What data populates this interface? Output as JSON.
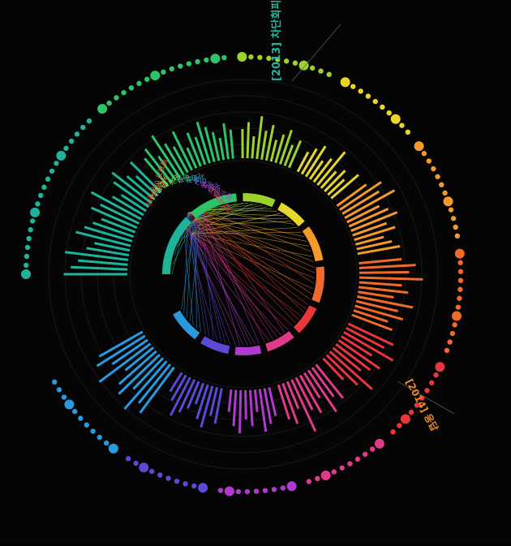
{
  "chart_data": {
    "type": "radial-bar",
    "annotations": [
      {
        "text": "[2013] 차단회피",
        "color": "#25b6a0"
      },
      {
        "text": "[2014] 응답",
        "color": "#f08a2b"
      }
    ],
    "legend_labels": [
      {
        "text": "독재자 아동센터",
        "color": "#e8683a"
      },
      {
        "text": "커뮤니티",
        "color": "#e9a13a"
      },
      {
        "text": "단체",
        "color": "#d7c23a"
      },
      {
        "text": "도서관",
        "color": "#9bd24a"
      },
      {
        "text": "박물관",
        "color": "#4bc46a"
      },
      {
        "text": "사회복지",
        "color": "#3ab1a0"
      },
      {
        "text": "미술관",
        "color": "#3a8bd6"
      },
      {
        "text": "국제기구",
        "color": "#6a5ad6"
      },
      {
        "text": "청소년단체",
        "color": "#c03ad0"
      },
      {
        "text": "학교",
        "color": "#e03a9a"
      },
      {
        "text": "기업재단",
        "color": "#e03a5a"
      }
    ],
    "sectors": [
      {
        "name": "teal",
        "color": "#1fb39a",
        "values": [
          9,
          8,
          7,
          9,
          6,
          5,
          8,
          7,
          6,
          5,
          7,
          6,
          8,
          5,
          4,
          6,
          7,
          5,
          4,
          6
        ]
      },
      {
        "name": "green",
        "color": "#2cc46a",
        "values": [
          5,
          6,
          4,
          7,
          5,
          4,
          6,
          3,
          5,
          4,
          6,
          5,
          4,
          3,
          5,
          4
        ]
      },
      {
        "name": "yellow-green",
        "color": "#9bd22c",
        "values": [
          4,
          5,
          3,
          6,
          4,
          5,
          3,
          4,
          5,
          3,
          4
        ]
      },
      {
        "name": "yellow",
        "color": "#e8d72a",
        "values": [
          3,
          4,
          5,
          3,
          4,
          6,
          3,
          4,
          3,
          5
        ]
      },
      {
        "name": "orange",
        "color": "#f39a2b",
        "values": [
          5,
          7,
          6,
          8,
          5,
          6,
          7,
          5,
          6,
          4,
          5,
          6
        ]
      },
      {
        "name": "deep-orange",
        "color": "#f06a2b",
        "values": [
          6,
          8,
          7,
          9,
          6,
          7,
          5,
          8,
          6,
          7,
          5,
          6
        ]
      },
      {
        "name": "red",
        "color": "#e8363a",
        "values": [
          7,
          6,
          8,
          5,
          7,
          6,
          5,
          8,
          6,
          4
        ]
      },
      {
        "name": "magenta",
        "color": "#e03a8a",
        "values": [
          6,
          5,
          7,
          4,
          6,
          5,
          8,
          4,
          6,
          5
        ]
      },
      {
        "name": "purple",
        "color": "#b03ad0",
        "values": [
          4,
          5,
          6,
          3,
          5,
          4,
          6,
          5,
          3
        ]
      },
      {
        "name": "indigo",
        "color": "#5a4ad6",
        "values": [
          5,
          4,
          6,
          5,
          3,
          4,
          5,
          6,
          4,
          3
        ]
      },
      {
        "name": "blue",
        "color": "#2a9ae0",
        "values": [
          8,
          7,
          9,
          6,
          8,
          7,
          5,
          9,
          6,
          8,
          7
        ]
      }
    ],
    "grid": true
  }
}
